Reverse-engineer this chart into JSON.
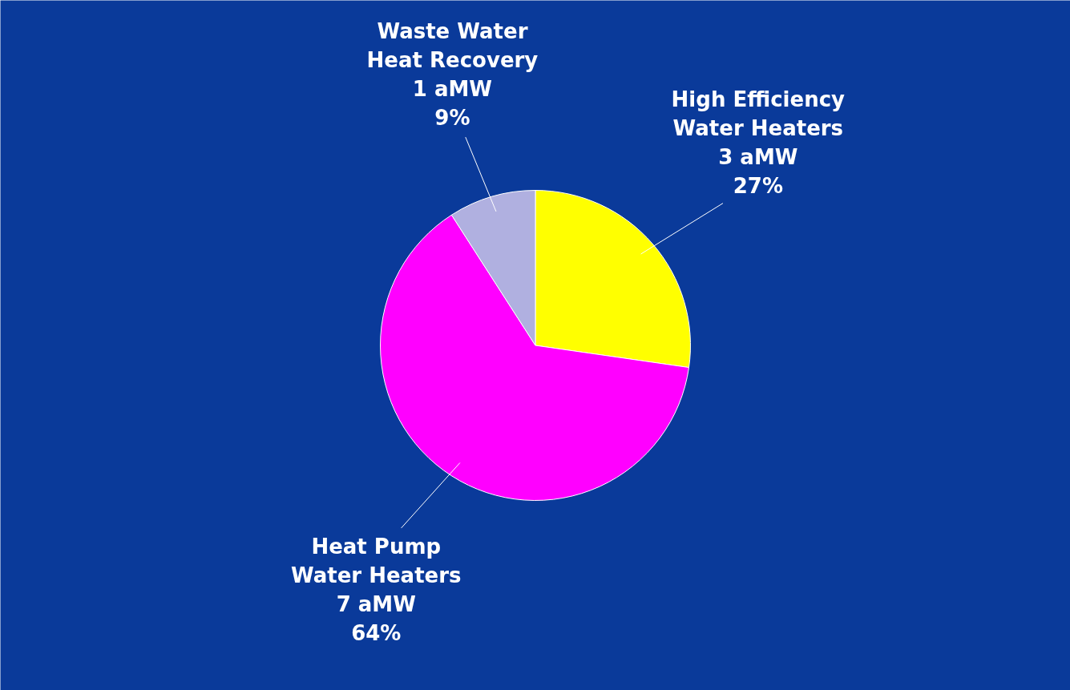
{
  "chart_data": {
    "type": "pie",
    "categories": [
      "High Efficiency\nWater Heaters",
      "Heat Pump\nWater Heaters",
      "Waste Water\nHeat Recovery"
    ],
    "values": [
      3,
      7,
      1
    ],
    "colors": [
      "#ffff00",
      "#ff00ff",
      "#b0b0e0"
    ],
    "value_labels": [
      "3 aMW\n27%",
      "7 aMW\n64%",
      "1 aMW\n9%"
    ]
  }
}
